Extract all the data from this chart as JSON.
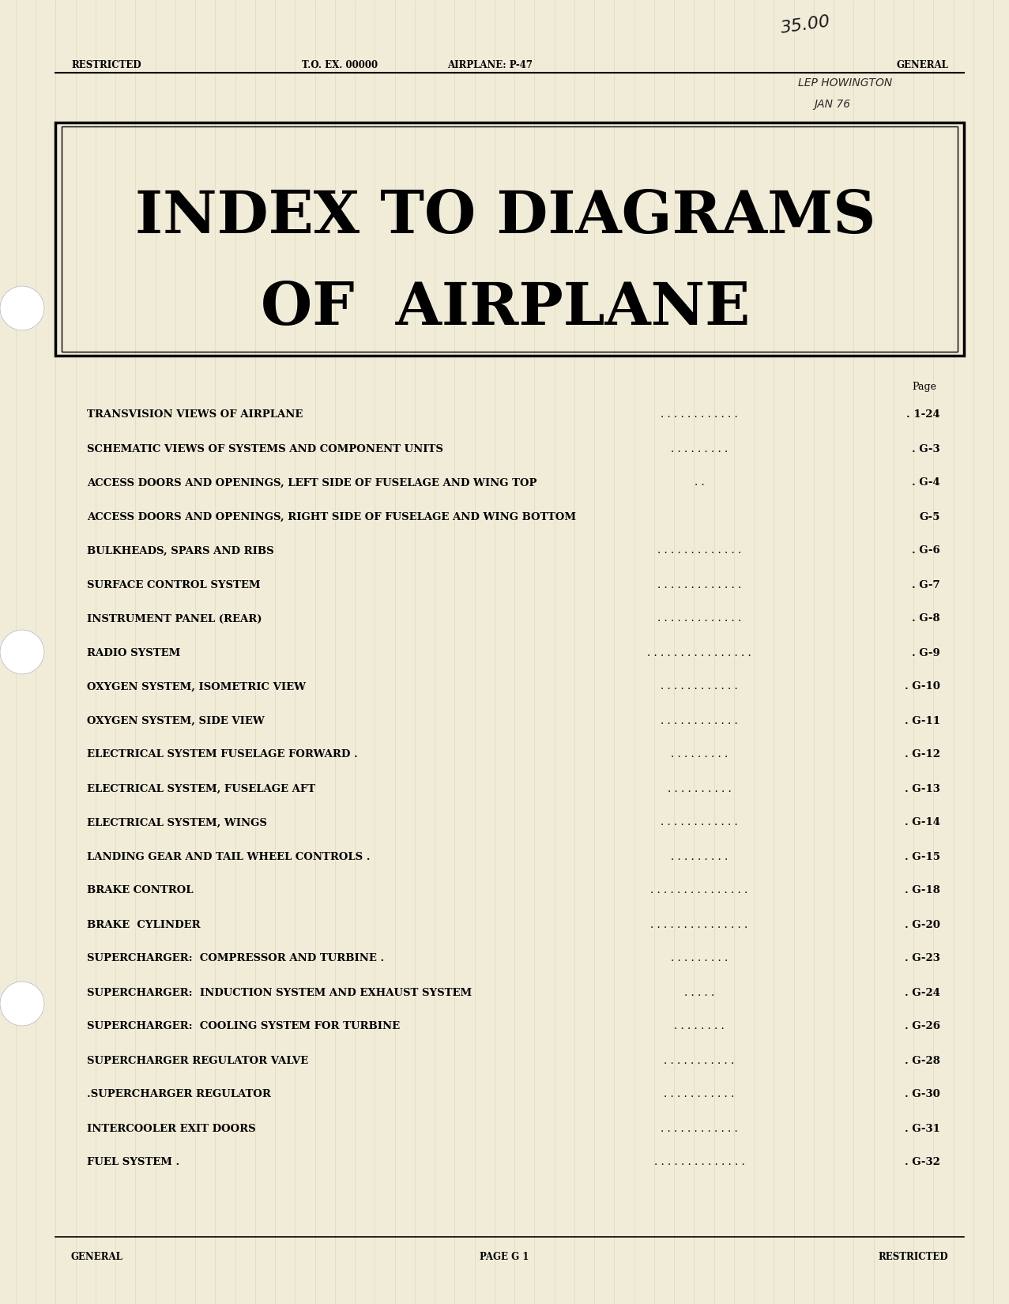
{
  "bg_color": "#f0ecd8",
  "page_width": 12.77,
  "page_height": 16.5,
  "header_left": "RESTRICTED",
  "header_center_left": "T.O. EX. 00000",
  "header_center": "AIRPLANE: P-47",
  "header_right": "GENERAL",
  "handwritten_price": "35.00",
  "handwritten_name": "LEP HOWINGTON",
  "handwritten_date": "JAN 76",
  "title_line1": "INDEX TO DIAGRAMS",
  "title_line2": "OF  AIRPLANE",
  "page_label": "Page",
  "footer_left": "GENERAL",
  "footer_center": "PAGE G 1",
  "footer_right": "RESTRICTED",
  "entry_labels": [
    "TRANSVISION VIEWS OF AIRPLANE",
    "SCHEMATIC VIEWS OF SYSTEMS AND COMPONENT UNITS",
    "ACCESS DOORS AND OPENINGS, LEFT SIDE OF FUSELAGE AND WING TOP",
    "ACCESS DOORS AND OPENINGS, RIGHT SIDE OF FUSELAGE AND WING BOTTOM",
    "BULKHEADS, SPARS AND RIBS",
    "SURFACE CONTROL SYSTEM",
    "INSTRUMENT PANEL (REAR)",
    "RADIO SYSTEM",
    "OXYGEN SYSTEM, ISOMETRIC VIEW",
    "OXYGEN SYSTEM, SIDE VIEW",
    "ELECTRICAL SYSTEM FUSELAGE FORWARD .",
    "ELECTRICAL SYSTEM, FUSELAGE AFT",
    "ELECTRICAL SYSTEM, WINGS",
    "LANDING GEAR AND TAIL WHEEL CONTROLS .",
    "BRAKE CONTROL",
    "BRAKE  CYLINDER",
    "SUPERCHARGER:  COMPRESSOR AND TURBINE .",
    "SUPERCHARGER:  INDUCTION SYSTEM AND EXHAUST SYSTEM",
    "SUPERCHARGER:  COOLING SYSTEM FOR TURBINE",
    "SUPERCHARGER REGULATOR VALVE",
    ".SUPERCHARGER REGULATOR",
    "INTERCOOLER EXIT DOORS",
    "FUEL SYSTEM ."
  ],
  "entry_pages": [
    ". 1-24",
    ". G-3",
    ". G-4",
    "G-5",
    ". G-6",
    ". G-7",
    ". G-8",
    ". G-9",
    ". G-10",
    ". G-11",
    ". G-12",
    ". G-13",
    ". G-14",
    ". G-15",
    ". G-18",
    ". G-20",
    ". G-23",
    ". G-24",
    ". G-26",
    ". G-28",
    ". G-30",
    ". G-31",
    ". G-32"
  ],
  "entry_dots": [
    ". . . . . . . . . . . .",
    ". . . . . . . . .",
    ". .",
    "",
    ". . . . . . . . . . . . .",
    ". . . . . . . . . . . . .",
    ". . . . . . . . . . . . .",
    ". . . . . . . . . . . . . . . .",
    ". . . . . . . . . . . .",
    ". . . . . . . . . . . .",
    ". . . . . . . . .",
    ". . . . . . . . . .",
    ". . . . . . . . . . . .",
    ". . . . . . . . .",
    ". . . . . . . . . . . . . . .",
    ". . . . . . . . . . . . . . .",
    ". . . . . . . . .",
    ". . . . .",
    ". . . . . . . .",
    ". . . . . . . . . . .",
    ". . . . . . . . . . .",
    ". . . . . . . . . . . .",
    ". . . . . . . . . . . . . ."
  ]
}
